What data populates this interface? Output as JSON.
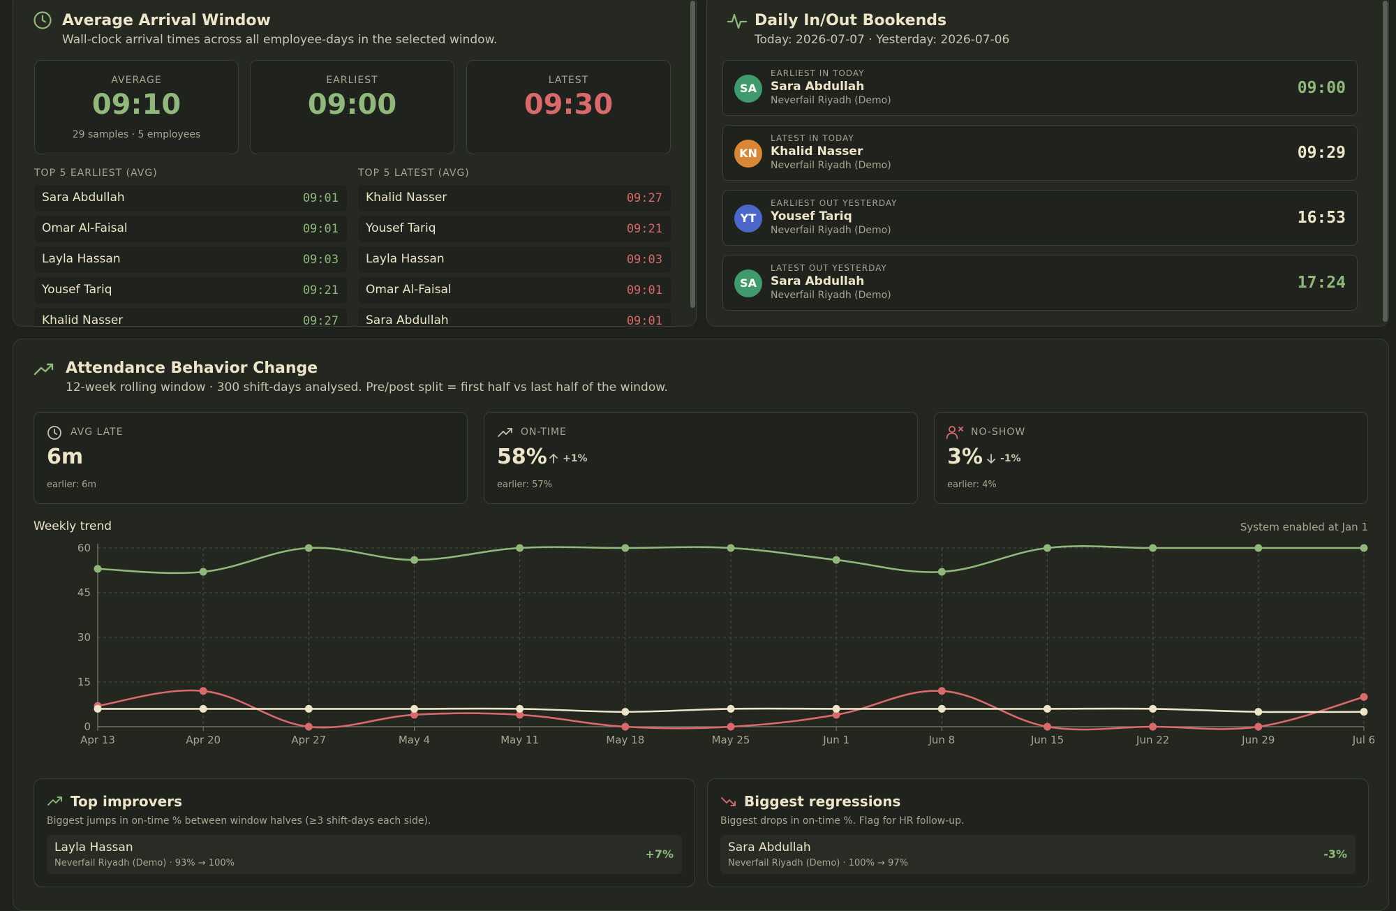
{
  "arrival": {
    "title": "Average Arrival Window",
    "subtitle": "Wall-clock arrival times across all employee-days in the selected window.",
    "stats": {
      "average": {
        "label": "AVERAGE",
        "value": "09:10",
        "note": "29 samples · 5 employees"
      },
      "earliest": {
        "label": "EARLIEST",
        "value": "09:00"
      },
      "latest": {
        "label": "LATEST",
        "value": "09:30"
      }
    },
    "top_earliest": {
      "header": "TOP 5 EARLIEST (AVG)",
      "rows": [
        {
          "name": "Sara Abdullah",
          "time": "09:01"
        },
        {
          "name": "Omar Al-Faisal",
          "time": "09:01"
        },
        {
          "name": "Layla Hassan",
          "time": "09:03"
        },
        {
          "name": "Yousef Tariq",
          "time": "09:21"
        },
        {
          "name": "Khalid Nasser",
          "time": "09:27"
        }
      ]
    },
    "top_latest": {
      "header": "TOP 5 LATEST (AVG)",
      "rows": [
        {
          "name": "Khalid Nasser",
          "time": "09:27"
        },
        {
          "name": "Yousef Tariq",
          "time": "09:21"
        },
        {
          "name": "Layla Hassan",
          "time": "09:03"
        },
        {
          "name": "Omar Al-Faisal",
          "time": "09:01"
        },
        {
          "name": "Sara Abdullah",
          "time": "09:01"
        }
      ]
    }
  },
  "bookends": {
    "title": "Daily In/Out Bookends",
    "subtitle": "Today: 2026-07-07 · Yesterday: 2026-07-06",
    "items": [
      {
        "initials": "SA",
        "avatar_color": "#3f9a6c",
        "label": "EARLIEST IN TODAY",
        "name": "Sara Abdullah",
        "site": "Neverfail Riyadh (Demo)",
        "time": "09:00",
        "time_color": "#8fb87a"
      },
      {
        "initials": "KN",
        "avatar_color": "#d98734",
        "label": "LATEST IN TODAY",
        "name": "Khalid Nasser",
        "site": "Neverfail Riyadh (Demo)",
        "time": "09:29",
        "time_color": "#ece5c8"
      },
      {
        "initials": "YT",
        "avatar_color": "#4a67c9",
        "label": "EARLIEST OUT YESTERDAY",
        "name": "Yousef Tariq",
        "site": "Neverfail Riyadh (Demo)",
        "time": "16:53",
        "time_color": "#ece5c8"
      },
      {
        "initials": "SA",
        "avatar_color": "#3f9a6c",
        "label": "LATEST OUT YESTERDAY",
        "name": "Sara Abdullah",
        "site": "Neverfail Riyadh (Demo)",
        "time": "17:24",
        "time_color": "#8fb87a"
      }
    ]
  },
  "behavior": {
    "title": "Attendance Behavior Change",
    "subtitle": "12-week rolling window · 300 shift-days analysed. Pre/post split = first half vs last half of the window.",
    "kpis": [
      {
        "label": "AVG LATE",
        "value": "6m",
        "delta": "",
        "note": "earlier: 6m"
      },
      {
        "label": "ON-TIME",
        "value": "58%",
        "delta": "+1%",
        "note": "earlier: 57%"
      },
      {
        "label": "NO-SHOW",
        "value": "3%",
        "delta": "-1%",
        "note": "earlier: 4%"
      }
    ],
    "trend_title": "Weekly trend",
    "trend_note": "System enabled at Jan 1",
    "improvers": {
      "title": "Top improvers",
      "subtitle": "Biggest jumps in on-time % between window halves (≥3 shift-days each side).",
      "rows": [
        {
          "name": "Layla Hassan",
          "meta": "Neverfail Riyadh (Demo) · 93% → 100%",
          "delta": "+7%"
        }
      ]
    },
    "regressions": {
      "title": "Biggest regressions",
      "subtitle": "Biggest drops in on-time %. Flag for HR follow-up.",
      "rows": [
        {
          "name": "Sara Abdullah",
          "meta": "Neverfail Riyadh (Demo) · 100% → 97%",
          "delta": "-3%"
        }
      ]
    }
  },
  "chart_data": {
    "type": "line",
    "title": "Weekly trend",
    "categories": [
      "Apr 13",
      "Apr 20",
      "Apr 27",
      "May 4",
      "May 11",
      "May 18",
      "May 25",
      "Jun 1",
      "Jun 8",
      "Jun 15",
      "Jun 22",
      "Jun 29",
      "Jul 6"
    ],
    "yticks": [
      0,
      15,
      30,
      45,
      60
    ],
    "ylim": [
      0,
      60
    ],
    "grid": true,
    "series": [
      {
        "color": "#8fb87a",
        "values": [
          53,
          52,
          60,
          56,
          60,
          60,
          60,
          56,
          52,
          60,
          60,
          60,
          60
        ]
      },
      {
        "color": "#d9696b",
        "values": [
          7,
          12,
          0,
          4,
          4,
          0,
          0,
          4,
          12,
          0,
          0,
          0,
          10
        ]
      },
      {
        "color": "#ece5c8",
        "values": [
          6,
          6,
          6,
          6,
          6,
          5,
          6,
          6,
          6,
          6,
          6,
          5,
          5
        ]
      }
    ]
  },
  "colors": {
    "green": "#8fb87a",
    "red": "#d9696b",
    "cream": "#ece5c8"
  }
}
